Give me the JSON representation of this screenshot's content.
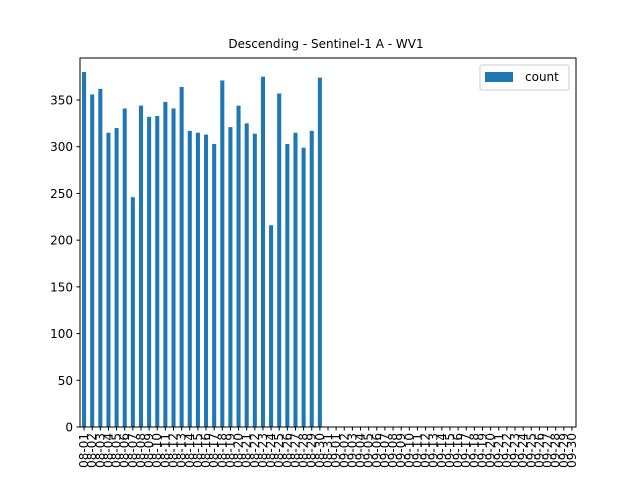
{
  "chart_data": {
    "type": "bar",
    "title": "Descending - Sentinel-1 A - WV1",
    "xlabel": "",
    "ylabel": "",
    "ylim": [
      0,
      395
    ],
    "yticks": [
      0,
      50,
      100,
      150,
      200,
      250,
      300,
      350
    ],
    "grid": false,
    "legend": "top-right",
    "categories": [
      "08-01",
      "08-02",
      "08-03",
      "08-04",
      "08-05",
      "08-06",
      "08-07",
      "08-08",
      "08-09",
      "08-10",
      "08-11",
      "08-12",
      "08-13",
      "08-14",
      "08-15",
      "08-16",
      "08-17",
      "08-18",
      "08-19",
      "08-20",
      "08-21",
      "08-22",
      "08-23",
      "08-24",
      "08-25",
      "08-26",
      "08-27",
      "08-28",
      "08-29",
      "08-30",
      "08-31",
      "09-01",
      "09-02",
      "09-03",
      "09-04",
      "09-05",
      "09-06",
      "09-07",
      "09-08",
      "09-09",
      "09-10",
      "09-11",
      "09-12",
      "09-13",
      "09-14",
      "09-15",
      "09-16",
      "09-17",
      "09-18",
      "09-19",
      "09-20",
      "09-21",
      "09-22",
      "09-23",
      "09-24",
      "09-25",
      "09-26",
      "09-27",
      "09-28",
      "09-29",
      "09-30"
    ],
    "series": [
      {
        "name": "count",
        "color": "#1f77b4",
        "values": [
          380,
          356,
          362,
          315,
          320,
          341,
          246,
          344,
          332,
          333,
          348,
          341,
          364,
          317,
          315,
          313,
          303,
          371,
          321,
          344,
          325,
          314,
          375,
          216,
          357,
          303,
          315,
          299,
          317,
          374,
          0,
          0,
          0,
          0,
          0,
          0,
          0,
          0,
          0,
          0,
          0,
          0,
          0,
          0,
          0,
          0,
          0,
          0,
          0,
          0,
          0,
          0,
          0,
          0,
          0,
          0,
          0,
          0,
          0,
          0,
          0
        ]
      }
    ]
  }
}
